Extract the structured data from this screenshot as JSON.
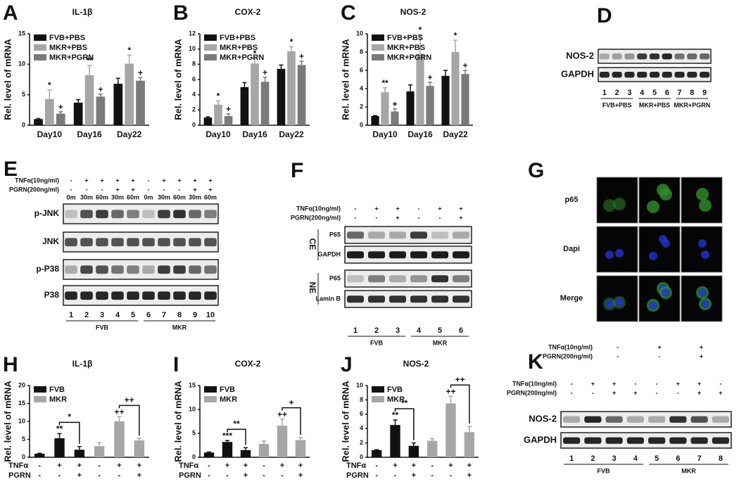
{
  "chart_data": [
    {
      "panel": "A",
      "type": "bar",
      "title": "IL-1β",
      "ylabel": "Rel. level of mRNA",
      "categories": [
        "Day10",
        "Day16",
        "Day22"
      ],
      "series": [
        {
          "name": "FVB+PBS",
          "color": "#111111",
          "values": [
            1,
            3.7,
            6.8
          ],
          "errors": [
            0.1,
            0.5,
            0.9
          ]
        },
        {
          "name": "MKR+PBS",
          "color": "#a6a6a6",
          "values": [
            4.3,
            8.2,
            10.1
          ],
          "errors": [
            1.5,
            1.6,
            1.4
          ],
          "marks": [
            "*",
            "**",
            "*"
          ]
        },
        {
          "name": "MKR+PGRN",
          "color": "#7a7a7a",
          "values": [
            1.9,
            4.7,
            7.3
          ],
          "errors": [
            0.3,
            0.4,
            0.5
          ],
          "marks": [
            "+",
            "+",
            "+"
          ]
        }
      ],
      "ylim": [
        0,
        15
      ],
      "yticks": [
        0,
        5,
        10,
        15
      ],
      "legend": "upper left"
    },
    {
      "panel": "B",
      "type": "bar",
      "title": "COX-2",
      "ylabel": "Rel. level of mRNA",
      "categories": [
        "Day10",
        "Day16",
        "Day22"
      ],
      "series": [
        {
          "name": "FVB+PBS",
          "color": "#111111",
          "values": [
            1,
            5,
            7.4
          ],
          "errors": [
            0.1,
            0.6,
            0.5
          ]
        },
        {
          "name": "MKR+PBS",
          "color": "#a6a6a6",
          "values": [
            2.7,
            8.1,
            9.7
          ],
          "errors": [
            0.5,
            0.7,
            0.6
          ],
          "marks": [
            "*",
            "*",
            "*"
          ]
        },
        {
          "name": "MKR+PGRN",
          "color": "#7a7a7a",
          "values": [
            1.2,
            5.7,
            7.9
          ],
          "errors": [
            0.3,
            0.6,
            0.5
          ],
          "marks": [
            "+",
            "+",
            "+"
          ]
        }
      ],
      "ylim": [
        0,
        12
      ],
      "yticks": [
        0,
        2,
        4,
        6,
        8,
        10,
        12
      ],
      "legend": "upper left"
    },
    {
      "panel": "C",
      "type": "bar",
      "title": "NOS-2",
      "ylabel": "Rel. level of mRNA",
      "categories": [
        "Day10",
        "Day16",
        "Day22"
      ],
      "series": [
        {
          "name": "FVB+PBS",
          "color": "#111111",
          "values": [
            1,
            3.7,
            5.4
          ],
          "errors": [
            0.05,
            0.7,
            0.6
          ]
        },
        {
          "name": "MKR+PBS",
          "color": "#a6a6a6",
          "values": [
            3.6,
            7.8,
            8
          ],
          "errors": [
            0.5,
            2.1,
            1.3
          ],
          "marks": [
            "**",
            "*",
            "*"
          ]
        },
        {
          "name": "MKR+PGRN",
          "color": "#7a7a7a",
          "values": [
            1.5,
            4.3,
            5.6
          ],
          "errors": [
            0.3,
            0.4,
            0.4
          ],
          "marks": [
            "+",
            "+",
            "+"
          ]
        }
      ],
      "ylim": [
        0,
        10
      ],
      "yticks": [
        0,
        2,
        4,
        6,
        8,
        10
      ],
      "legend": "upper left"
    },
    {
      "panel": "H",
      "type": "bar",
      "title": "IL-1β",
      "ylabel": "Rel. level of mRNA",
      "categories": [
        null,
        null,
        null,
        null,
        null,
        null
      ],
      "x_rows": [
        {
          "label": "TNFα",
          "values": [
            "-",
            "+",
            "+",
            "-",
            "+",
            "+"
          ]
        },
        {
          "label": "PGRN",
          "values": [
            "-",
            "-",
            "+",
            "-",
            "-",
            "+"
          ]
        }
      ],
      "series": [
        {
          "name": "FVB",
          "color": "#111111",
          "values": [
            1,
            5.3,
            2.1,
            null,
            null,
            null
          ],
          "errors": [
            0.1,
            1.3,
            0.9,
            null,
            null,
            null
          ],
          "marks": [
            null,
            "**",
            null,
            null,
            null,
            null
          ],
          "bracket": "*"
        },
        {
          "name": "MKR",
          "color": "#a6a6a6",
          "values": [
            null,
            null,
            null,
            3.1,
            10,
            4.7
          ],
          "errors": [
            null,
            null,
            null,
            1,
            1.3,
            0.6
          ],
          "marks": [
            null,
            null,
            null,
            null,
            "++",
            null
          ],
          "bracket": "++"
        }
      ],
      "ylim": [
        0,
        20
      ],
      "yticks": [
        0,
        5,
        10,
        15,
        20
      ],
      "legend": "upper left"
    },
    {
      "panel": "I",
      "type": "bar",
      "title": "COX-2",
      "ylabel": "Rel. level of mRNA",
      "categories": [
        null,
        null,
        null,
        null,
        null,
        null
      ],
      "x_rows": [
        {
          "label": "TNFα",
          "values": [
            "-",
            "+",
            "+",
            "-",
            "+",
            "+"
          ]
        },
        {
          "label": "PGRN",
          "values": [
            "-",
            "-",
            "+",
            "-",
            "-",
            "+"
          ]
        }
      ],
      "series": [
        {
          "name": "FVB",
          "color": "#111111",
          "values": [
            1,
            3.2,
            1.5,
            null,
            null,
            null
          ],
          "errors": [
            0.1,
            0.3,
            0.5,
            null,
            null,
            null
          ],
          "marks": [
            null,
            "***",
            null,
            null,
            null,
            null
          ],
          "bracket": "**"
        },
        {
          "name": "MKR",
          "color": "#a6a6a6",
          "values": [
            null,
            null,
            null,
            2.8,
            6.6,
            3.6
          ],
          "errors": [
            null,
            null,
            null,
            0.6,
            1.4,
            0.5
          ],
          "marks": [
            null,
            null,
            null,
            null,
            "++",
            null
          ],
          "bracket": "+"
        }
      ],
      "ylim": [
        0,
        15
      ],
      "yticks": [
        0,
        5,
        10,
        15
      ],
      "legend": "upper left"
    },
    {
      "panel": "J",
      "type": "bar",
      "title": "NOS-2",
      "ylabel": "Rel. level of mRNA",
      "categories": [
        null,
        null,
        null,
        null,
        null,
        null
      ],
      "x_rows": [
        {
          "label": "TNFα",
          "values": [
            "-",
            "+",
            "+",
            "-",
            "+",
            "+"
          ]
        },
        {
          "label": "PGRN",
          "values": [
            "-",
            "-",
            "+",
            "-",
            "-",
            "+"
          ]
        }
      ],
      "series": [
        {
          "name": "FVB",
          "color": "#111111",
          "values": [
            1,
            4.5,
            1.6,
            null,
            null,
            null
          ],
          "errors": [
            0.05,
            0.7,
            0.4,
            null,
            null,
            null
          ],
          "marks": [
            null,
            "**",
            null,
            null,
            null,
            null
          ],
          "bracket": "**"
        },
        {
          "name": "MKR",
          "color": "#a6a6a6",
          "values": [
            null,
            null,
            null,
            2.3,
            7.5,
            3.5
          ],
          "errors": [
            null,
            null,
            null,
            0.3,
            1,
            0.8
          ],
          "marks": [
            null,
            null,
            null,
            null,
            "++",
            null
          ],
          "bracket": "++"
        }
      ],
      "ylim": [
        0,
        10
      ],
      "yticks": [
        0,
        2,
        4,
        6,
        8,
        10
      ],
      "legend": "upper left"
    }
  ],
  "blots": {
    "D": {
      "panel": "D",
      "rows": [
        "NOS-2",
        "GAPDH"
      ],
      "lanes": [
        "1",
        "2",
        "3",
        "4",
        "5",
        "6",
        "7",
        "8",
        "9"
      ],
      "groups": [
        "FVB+PBS",
        "MKR+PBS",
        "MKR+PGRN"
      ]
    },
    "E": {
      "panel": "E",
      "treatments": [
        {
          "label": "TNFα(10ng/ml)",
          "values": [
            "-",
            "+",
            "+",
            "+",
            "+",
            "-",
            "+",
            "+",
            "+",
            "+"
          ]
        },
        {
          "label": "PGRN(200ng/ml)",
          "values": [
            "-",
            "-",
            "-",
            "+",
            "+",
            "-",
            "-",
            "-",
            "+",
            "+"
          ]
        }
      ],
      "times": [
        "0m",
        "30m",
        "60m",
        "30m",
        "60m",
        "0m",
        "30m",
        "60m",
        "30m",
        "60m"
      ],
      "rows": [
        "p-JNK",
        "JNK",
        "p-P38",
        "P38"
      ],
      "lanes": [
        "1",
        "2",
        "3",
        "4",
        "5",
        "6",
        "7",
        "8",
        "9",
        "10"
      ],
      "groups": [
        "FVB",
        "MKR"
      ]
    },
    "F": {
      "panel": "F",
      "treatments": [
        {
          "label": "TNFα(10ng/ml)",
          "values": [
            "-",
            "+",
            "+",
            "-",
            "+",
            "+"
          ]
        },
        {
          "label": "PGRN(200ng/ml)",
          "values": [
            "-",
            "-",
            "+",
            "-",
            "-",
            "+"
          ]
        }
      ],
      "sections": [
        {
          "label": "CE",
          "rows": [
            "P65",
            "GAPDH"
          ]
        },
        {
          "label": "NE",
          "rows": [
            "P65",
            "Lamin B"
          ]
        }
      ],
      "lanes": [
        "1",
        "2",
        "3",
        "4",
        "5",
        "6"
      ],
      "groups": [
        "FVB",
        "MKR"
      ]
    },
    "G": {
      "panel": "G",
      "rows": [
        "p65",
        "Dapi",
        "Merge"
      ],
      "treatments": [
        {
          "label": "TNFα(10ng/ml)",
          "values": [
            "-",
            "+",
            "+"
          ]
        },
        {
          "label": "PGRN(200ng/ml)",
          "values": [
            "-",
            "-",
            "+"
          ]
        }
      ]
    },
    "K": {
      "panel": "K",
      "treatments": [
        {
          "label": "TNFα(10ng/ml)",
          "values": [
            "-",
            "+",
            "+",
            "-",
            "-",
            "+",
            "+",
            "-"
          ]
        },
        {
          "label": "PGRN(200ng/ml)",
          "values": [
            "-",
            "-",
            "+",
            "+",
            "-",
            "-",
            "+",
            "+"
          ]
        }
      ],
      "rows": [
        "NOS-2",
        "GAPDH"
      ],
      "lanes": [
        "1",
        "2",
        "3",
        "4",
        "5",
        "6",
        "7",
        "8"
      ],
      "groups": [
        "FVB",
        "MKR"
      ]
    }
  }
}
